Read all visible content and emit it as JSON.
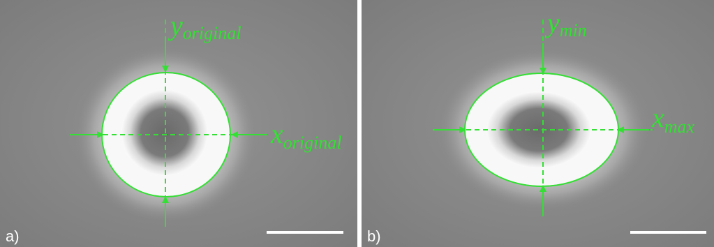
{
  "panels": [
    {
      "label": "a)",
      "y_annotation": {
        "symbol": "y",
        "subscript": "original"
      },
      "x_annotation": {
        "symbol": "x",
        "subscript": "original"
      }
    },
    {
      "label": "b)",
      "y_annotation": {
        "symbol": "y",
        "subscript": "min"
      },
      "x_annotation": {
        "symbol": "x",
        "subscript": "max"
      }
    }
  ]
}
